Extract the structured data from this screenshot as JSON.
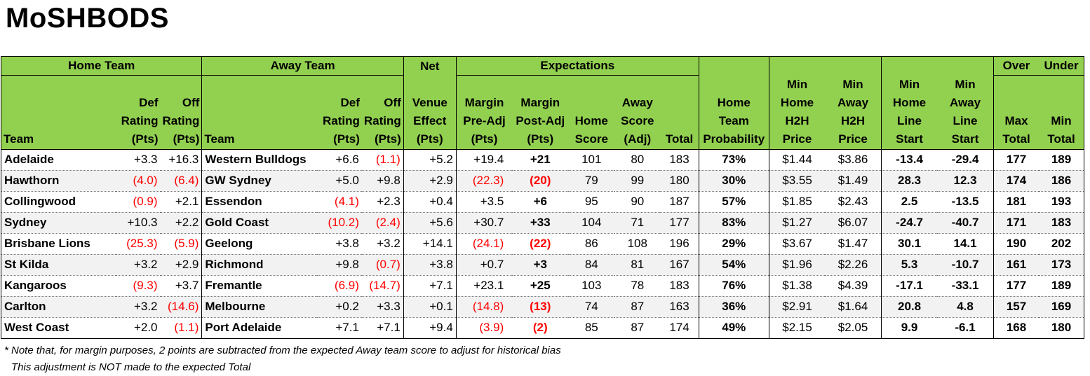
{
  "title": "MoSHBODS",
  "headers": {
    "home_team": "Home Team",
    "away_team": "Away Team",
    "net": "Net",
    "expectations": "Expectations",
    "over": "Over",
    "under": "Under",
    "team": "Team",
    "def_rating": [
      "Def",
      "Rating",
      "(Pts)"
    ],
    "off_rating": [
      "Off",
      "Rating",
      "(Pts)"
    ],
    "venue_effect": [
      "Venue",
      "Effect",
      "(Pts)"
    ],
    "margin_pre": [
      "Margin",
      "Pre-Adj",
      "(Pts)"
    ],
    "margin_post": [
      "Margin",
      "Post-Adj",
      "(Pts)"
    ],
    "home_score": [
      "Home",
      "Score"
    ],
    "away_score": [
      "Away",
      "Score",
      "(Adj)"
    ],
    "total": "Total",
    "home_prob": [
      "Home",
      "Team",
      "Probability"
    ],
    "min_home_h2h": [
      "Min",
      "Home",
      "H2H",
      "Price"
    ],
    "min_away_h2h": [
      "Min",
      "Away",
      "H2H",
      "Price"
    ],
    "min_home_line": [
      "Min",
      "Home",
      "Line",
      "Start"
    ],
    "min_away_line": [
      "Min",
      "Away",
      "Line",
      "Start"
    ],
    "max_total": [
      "Max",
      "Total"
    ],
    "min_total": [
      "Min",
      "Total"
    ]
  },
  "rows": [
    [
      "Adelaide",
      "+3.3",
      "+16.3",
      "Western Bulldogs",
      "+6.6",
      "(1.1)",
      "+5.2",
      "+19.4",
      "+21",
      "101",
      "80",
      "183",
      "73%",
      "$1.44",
      "$3.86",
      "-13.4",
      "-29.4",
      "177",
      "189"
    ],
    [
      "Hawthorn",
      "(4.0)",
      "(6.4)",
      "GW Sydney",
      "+5.0",
      "+9.8",
      "+2.9",
      "(22.3)",
      "(20)",
      "79",
      "99",
      "180",
      "30%",
      "$3.55",
      "$1.49",
      "28.3",
      "12.3",
      "174",
      "186"
    ],
    [
      "Collingwood",
      "(0.9)",
      "+2.1",
      "Essendon",
      "(4.1)",
      "+2.3",
      "+0.4",
      "+3.5",
      "+6",
      "95",
      "90",
      "187",
      "57%",
      "$1.85",
      "$2.43",
      "2.5",
      "-13.5",
      "181",
      "193"
    ],
    [
      "Sydney",
      "+10.3",
      "+2.2",
      "Gold Coast",
      "(10.2)",
      "(2.4)",
      "+5.6",
      "+30.7",
      "+33",
      "104",
      "71",
      "177",
      "83%",
      "$1.27",
      "$6.07",
      "-24.7",
      "-40.7",
      "171",
      "183"
    ],
    [
      "Brisbane Lions",
      "(25.3)",
      "(5.9)",
      "Geelong",
      "+3.8",
      "+3.2",
      "+14.1",
      "(24.1)",
      "(22)",
      "86",
      "108",
      "196",
      "29%",
      "$3.67",
      "$1.47",
      "30.1",
      "14.1",
      "190",
      "202"
    ],
    [
      "St Kilda",
      "+3.2",
      "+2.9",
      "Richmond",
      "+9.8",
      "(0.7)",
      "+3.8",
      "+0.7",
      "+3",
      "84",
      "81",
      "167",
      "54%",
      "$1.96",
      "$2.26",
      "5.3",
      "-10.7",
      "161",
      "173"
    ],
    [
      "Kangaroos",
      "(9.3)",
      "+3.7",
      "Fremantle",
      "(6.9)",
      "(14.7)",
      "+7.1",
      "+23.1",
      "+25",
      "103",
      "78",
      "183",
      "76%",
      "$1.38",
      "$4.39",
      "-17.1",
      "-33.1",
      "177",
      "189"
    ],
    [
      "Carlton",
      "+3.2",
      "(14.6)",
      "Melbourne",
      "+0.2",
      "+3.3",
      "+0.1",
      "(14.8)",
      "(13)",
      "74",
      "87",
      "163",
      "36%",
      "$2.91",
      "$1.64",
      "20.8",
      "4.8",
      "157",
      "169"
    ],
    [
      "West Coast",
      "+2.0",
      "(1.1)",
      "Port Adelaide",
      "+7.1",
      "+7.1",
      "+9.4",
      "(3.9)",
      "(2)",
      "85",
      "87",
      "174",
      "49%",
      "$2.15",
      "$2.05",
      "9.9",
      "-6.1",
      "168",
      "180"
    ]
  ],
  "notes": [
    "* Note that, for margin purposes, 2 points are subtracted from the expected Away team score to adjust for historical bias",
    "This adjustment is NOT made to the expected Total"
  ]
}
